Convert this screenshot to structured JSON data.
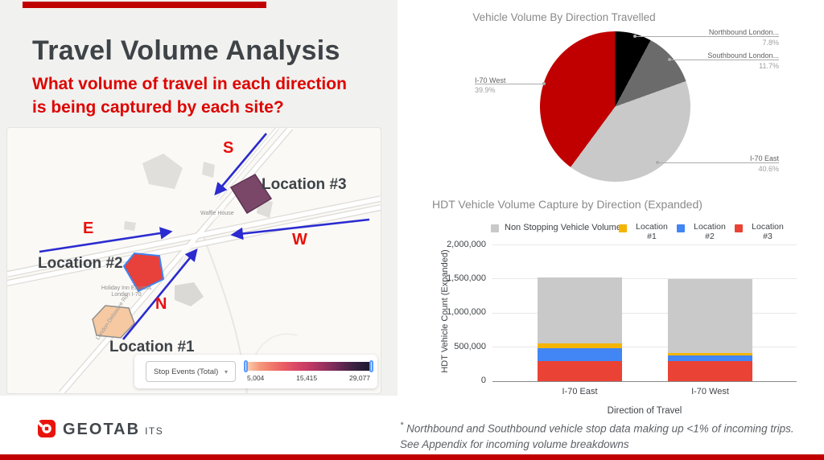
{
  "slide": {
    "title": "Travel Volume Analysis",
    "subtitle_line1": "What volume of travel in each direction",
    "subtitle_line2": "is being captured by each site?",
    "accent_color": "#C00000"
  },
  "map": {
    "site_labels": {
      "location1": "Location #1",
      "location2": "Location #2",
      "location3": "Location #3"
    },
    "direction_labels": {
      "north": "N",
      "south": "S",
      "east": "E",
      "west": "W"
    },
    "place_labels": {
      "waffle_house": "Waffle House",
      "holiday_inn_line1": "Holiday Inn Express",
      "holiday_inn_line2": "London I-70",
      "road": "London-Delaware Rd"
    },
    "legend": {
      "dropdown_value": "Stop Events (Total)",
      "caret_icon": "▾",
      "scale_min": "5,004",
      "scale_mid": "15,415",
      "scale_max": "29,077",
      "gradient_colors": [
        "#F9CEB0",
        "#F5997B",
        "#F1796C",
        "#E85D63",
        "#D94767",
        "#C23A64",
        "#A23260",
        "#7E2C5A",
        "#55244B",
        "#32203C",
        "#1D1830"
      ]
    }
  },
  "chart_data": [
    {
      "type": "pie",
      "title": "Vehicle Volume By Direction Travelled",
      "slices": [
        {
          "label": "Northbound London...",
          "pct": 7.8,
          "pct_label": "7.8%",
          "color": "#000000"
        },
        {
          "label": "Southbound London...",
          "pct": 11.7,
          "pct_label": "11.7%",
          "color": "#6B6B6B"
        },
        {
          "label": "I-70 East",
          "pct": 40.6,
          "pct_label": "40.6%",
          "color": "#C9C9C9"
        },
        {
          "label": "I-70 West",
          "pct": 39.9,
          "pct_label": "39.9%",
          "color": "#C00000"
        }
      ],
      "legend_position": "labeled-callouts"
    },
    {
      "type": "bar",
      "stacked": true,
      "title": "HDT Vehicle Volume Capture by Direction (Expanded)",
      "categories": [
        "I-70 East",
        "I-70 West"
      ],
      "series": [
        {
          "name": "Location #3",
          "color": "#EA4335",
          "values": [
            300000,
            295000
          ]
        },
        {
          "name": "Location #2",
          "color": "#4285F4",
          "values": [
            185000,
            85000
          ]
        },
        {
          "name": "Location #1",
          "color": "#F4B400",
          "values": [
            70000,
            35000
          ]
        },
        {
          "name": "Non Stopping Vehicle Volume",
          "color": "#C9C9C9",
          "values": [
            965000,
            1075000
          ]
        }
      ],
      "legend_items": [
        {
          "line1": "Non Stopping Vehicle Volume",
          "line2": "",
          "color": "#C9C9C9"
        },
        {
          "line1": "Location",
          "line2": "#1",
          "color": "#F4B400"
        },
        {
          "line1": "Location",
          "line2": "#2",
          "color": "#4285F4"
        },
        {
          "line1": "Location",
          "line2": "#3",
          "color": "#EA4335"
        }
      ],
      "xlabel": "Direction of Travel",
      "ylabel": "HDT Vehicle Count (Expanded)",
      "ylim": [
        0,
        2000000
      ],
      "yticks": [
        "0",
        "500,000",
        "1,000,000",
        "1,500,000",
        "2,000,000"
      ],
      "grid": true
    }
  ],
  "footnote": {
    "marker": "*",
    "line1": " Northbound and Southbound vehicle stop data making up <1% of incoming trips.",
    "line2": "See Appendix for incoming volume breakdowns"
  },
  "footer": {
    "brand": "GEOTAB",
    "brand_suffix": "ITS"
  }
}
